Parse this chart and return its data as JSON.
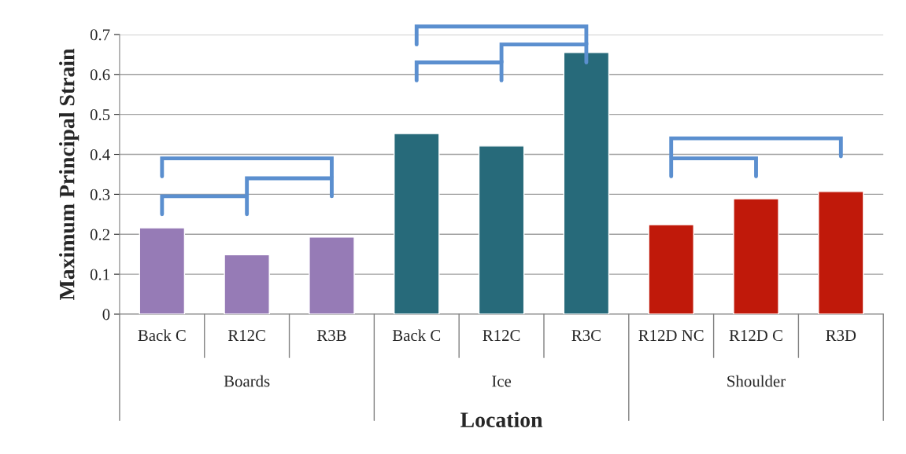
{
  "chart_data": {
    "type": "bar",
    "xlabel": "Location",
    "ylabel": "Maximum Principal Strain",
    "categories": [
      "Back C",
      "R12C",
      "R3B",
      "Back C",
      "R12C",
      "R3C",
      "R12D NC",
      "R12D C",
      "R3D"
    ],
    "values": [
      0.216,
      0.149,
      0.193,
      0.452,
      0.421,
      0.655,
      0.224,
      0.289,
      0.307
    ],
    "colors": [
      "#967bb6",
      "#967bb6",
      "#967bb6",
      "#276a7a",
      "#276a7a",
      "#276a7a",
      "#c0190a",
      "#c0190a",
      "#c0190a"
    ],
    "annotations": [
      "Boards",
      "Ice",
      "Shoulder"
    ],
    "ylim": [
      0,
      0.7
    ],
    "yticks": [
      0,
      0.1,
      0.2,
      0.3,
      0.4,
      0.5,
      0.6,
      0.7
    ],
    "grid": "y"
  }
}
